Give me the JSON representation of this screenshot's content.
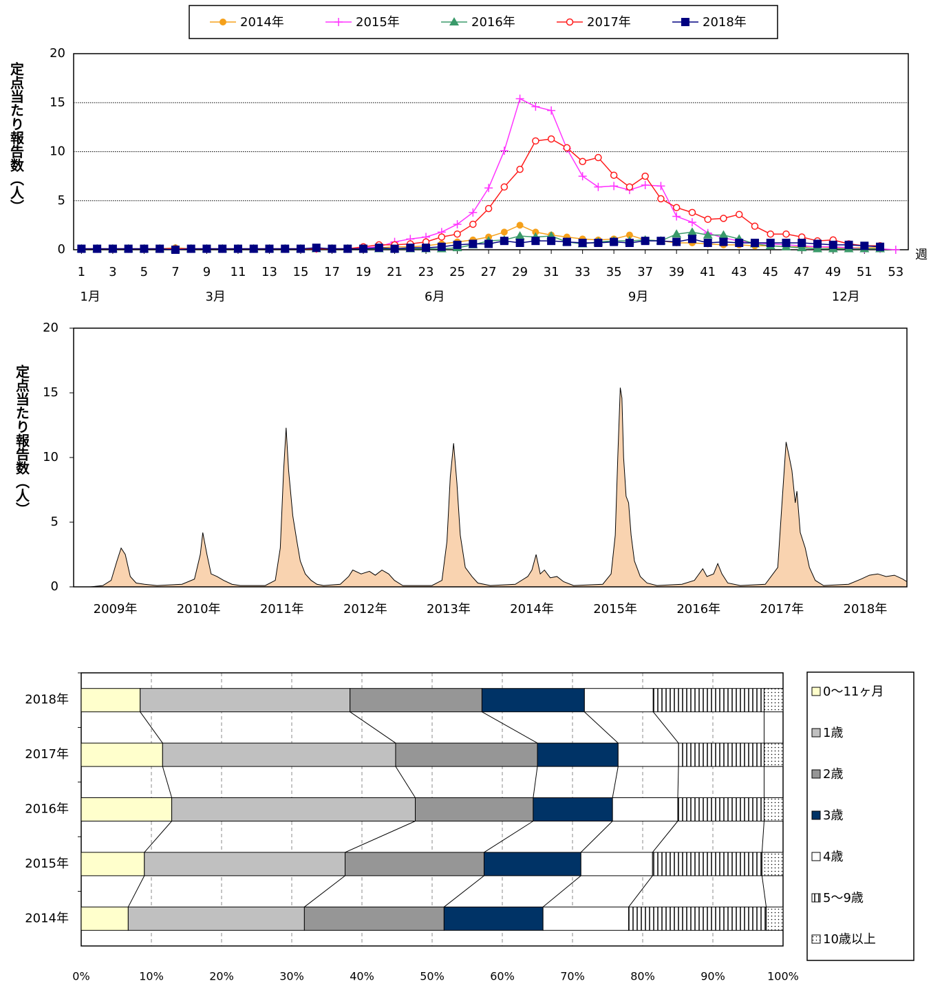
{
  "chart_data": [
    {
      "type": "line",
      "y_label": "定点当たり報告数（人）",
      "x_unit": "週",
      "legend": "top",
      "grid": true,
      "x": [
        1,
        2,
        3,
        4,
        5,
        6,
        7,
        8,
        9,
        10,
        11,
        12,
        13,
        14,
        15,
        16,
        17,
        18,
        19,
        20,
        21,
        22,
        23,
        24,
        25,
        26,
        27,
        28,
        29,
        30,
        31,
        32,
        33,
        34,
        35,
        36,
        37,
        38,
        39,
        40,
        41,
        42,
        43,
        44,
        45,
        46,
        47,
        48,
        49,
        50,
        51,
        52,
        53
      ],
      "xlim": [
        0.5,
        53.8
      ],
      "xticks": [
        1,
        3,
        5,
        7,
        9,
        11,
        13,
        15,
        17,
        19,
        21,
        23,
        25,
        27,
        29,
        31,
        33,
        35,
        37,
        39,
        41,
        43,
        45,
        47,
        49,
        51,
        53
      ],
      "month_labels": [
        {
          "value": 1,
          "label": "1月"
        },
        {
          "value": 9,
          "label": "3月"
        },
        {
          "value": 23,
          "label": "6月"
        },
        {
          "value": 36,
          "label": "9月"
        },
        {
          "value": 49,
          "label": "12月"
        }
      ],
      "ylim": [
        0,
        20
      ],
      "yticks": [
        0,
        5,
        10,
        15,
        20
      ],
      "series": [
        {
          "name": "2014年",
          "color": "#f5a01a",
          "marker": "circle",
          "values": [
            0.1,
            0.1,
            0.1,
            0.1,
            0.1,
            0.1,
            0.2,
            0.1,
            0.1,
            0.1,
            0.1,
            0.1,
            0.1,
            0.1,
            0.1,
            0.1,
            0.1,
            0.1,
            0.2,
            0.2,
            0.3,
            0.3,
            0.4,
            0.6,
            0.8,
            1.0,
            1.3,
            1.8,
            2.5,
            1.8,
            1.5,
            1.3,
            1.1,
            1.0,
            1.1,
            1.5,
            1.0,
            0.9,
            0.7,
            0.7,
            0.6,
            0.5,
            0.5,
            0.4,
            0.4,
            0.3,
            0.3,
            0.3,
            0.2,
            0.2,
            0.2,
            0.2,
            null
          ]
        },
        {
          "name": "2015年",
          "color": "#ff33ff",
          "marker": "plus",
          "values": [
            0.1,
            0.1,
            0.1,
            0.1,
            0.1,
            0.1,
            0.1,
            0.1,
            0.1,
            0.1,
            0.1,
            0.1,
            0.1,
            0.1,
            0.1,
            0.1,
            0.1,
            0.1,
            0.2,
            0.3,
            0.8,
            1.1,
            1.3,
            1.8,
            2.6,
            3.8,
            6.3,
            10.1,
            15.4,
            14.6,
            14.2,
            10.3,
            7.5,
            6.4,
            6.5,
            6.1,
            6.6,
            6.5,
            3.4,
            2.8,
            1.7,
            1.2,
            0.9,
            0.7,
            0.6,
            0.5,
            0.4,
            0.3,
            0.3,
            0.2,
            0.1,
            0.1,
            0.0
          ]
        },
        {
          "name": "2016年",
          "color": "#3a9a6a",
          "marker": "triangle",
          "values": [
            0.1,
            0.1,
            0.1,
            0.1,
            0.1,
            0.1,
            0.1,
            0.1,
            0.1,
            0.1,
            0.1,
            0.1,
            0.1,
            0.1,
            0.1,
            0.1,
            0.1,
            0.1,
            0.1,
            0.1,
            0.1,
            0.1,
            0.1,
            0.1,
            0.2,
            0.5,
            0.9,
            1.0,
            1.4,
            1.3,
            1.4,
            0.8,
            0.6,
            0.8,
            0.9,
            0.9,
            1.0,
            0.9,
            1.6,
            1.8,
            1.5,
            1.5,
            1.1,
            0.6,
            0.4,
            0.3,
            0.2,
            0.1,
            0.1,
            0.1,
            0.1,
            0.1,
            null
          ]
        },
        {
          "name": "2017年",
          "color": "#ff1a1a",
          "marker": "open-circle",
          "values": [
            0.1,
            0.1,
            0.1,
            0.1,
            0.1,
            0.1,
            0.1,
            0.1,
            0.1,
            0.1,
            0.1,
            0.1,
            0.1,
            0.1,
            0.1,
            0.1,
            0.1,
            0.1,
            0.3,
            0.5,
            0.5,
            0.6,
            0.8,
            1.3,
            1.6,
            2.6,
            4.2,
            6.4,
            8.2,
            11.1,
            11.3,
            10.4,
            9.0,
            9.4,
            7.6,
            6.4,
            7.5,
            5.2,
            4.3,
            3.8,
            3.1,
            3.2,
            3.6,
            2.4,
            1.6,
            1.6,
            1.3,
            0.9,
            1.0,
            0.6,
            0.4,
            0.4,
            null
          ]
        },
        {
          "name": "2018年",
          "color": "#000080",
          "marker": "square",
          "values": [
            0.1,
            0.1,
            0.1,
            0.1,
            0.1,
            0.1,
            0.0,
            0.1,
            0.1,
            0.1,
            0.1,
            0.1,
            0.1,
            0.1,
            0.1,
            0.2,
            0.1,
            0.1,
            0.1,
            0.2,
            0.1,
            0.2,
            0.2,
            0.3,
            0.5,
            0.6,
            0.6,
            0.9,
            0.7,
            0.9,
            0.9,
            0.8,
            0.7,
            0.7,
            0.8,
            0.7,
            0.9,
            0.9,
            0.8,
            1.1,
            0.7,
            0.8,
            0.7,
            0.7,
            0.7,
            0.7,
            0.7,
            0.6,
            0.5,
            0.5,
            0.4,
            0.3,
            null
          ]
        }
      ]
    },
    {
      "type": "area",
      "y_label": "定点当たり報告数（人）",
      "color": "#f9d3b0",
      "x": [
        2009.0,
        2009.2,
        2009.35,
        2009.45,
        2009.52,
        2009.57,
        2009.62,
        2009.68,
        2009.75,
        2009.85,
        2010.0,
        2010.3,
        2010.45,
        2010.52,
        2010.55,
        2010.6,
        2010.65,
        2010.72,
        2010.8,
        2010.9,
        2011.0,
        2011.3,
        2011.42,
        2011.48,
        2011.52,
        2011.55,
        2011.58,
        2011.63,
        2011.68,
        2011.72,
        2011.78,
        2011.85,
        2011.92,
        2012.0,
        2012.2,
        2012.3,
        2012.35,
        2012.45,
        2012.55,
        2012.62,
        2012.7,
        2012.78,
        2012.85,
        2012.95,
        2013.3,
        2013.42,
        2013.48,
        2013.52,
        2013.56,
        2013.6,
        2013.64,
        2013.7,
        2013.78,
        2013.85,
        2014.0,
        2014.3,
        2014.45,
        2014.5,
        2014.55,
        2014.6,
        2014.65,
        2014.72,
        2014.8,
        2014.88,
        2015.0,
        2015.35,
        2015.45,
        2015.5,
        2015.53,
        2015.56,
        2015.58,
        2015.6,
        2015.63,
        2015.66,
        2015.69,
        2015.73,
        2015.8,
        2015.88,
        2016.0,
        2016.3,
        2016.45,
        2016.55,
        2016.6,
        2016.68,
        2016.73,
        2016.78,
        2016.85,
        2017.0,
        2017.3,
        2017.45,
        2017.5,
        2017.55,
        2017.58,
        2017.62,
        2017.66,
        2017.68,
        2017.72,
        2017.78,
        2017.83,
        2017.9,
        2018.0,
        2018.3,
        2018.45,
        2018.55,
        2018.65,
        2018.75,
        2018.85,
        2018.95,
        2019.0
      ],
      "values": [
        0,
        0,
        0.1,
        0.5,
        2.0,
        3.0,
        2.5,
        0.8,
        0.3,
        0.2,
        0.1,
        0.2,
        0.6,
        2.5,
        4.2,
        2.5,
        1.0,
        0.8,
        0.5,
        0.2,
        0.1,
        0.1,
        0.5,
        3,
        9,
        12.3,
        9,
        5.5,
        3.5,
        2.0,
        1.0,
        0.5,
        0.2,
        0.1,
        0.2,
        0.8,
        1.3,
        1.0,
        1.2,
        0.9,
        1.3,
        1.0,
        0.5,
        0.1,
        0.1,
        0.5,
        3.5,
        8.5,
        11.1,
        8,
        4,
        1.5,
        0.8,
        0.3,
        0.1,
        0.2,
        0.8,
        1.3,
        2.5,
        1.0,
        1.3,
        0.7,
        0.8,
        0.4,
        0.1,
        0.2,
        1.0,
        4,
        10,
        15.4,
        14.6,
        10,
        7,
        6.5,
        4,
        2.0,
        0.8,
        0.3,
        0.1,
        0.2,
        0.5,
        1.4,
        0.8,
        1.0,
        1.8,
        1.0,
        0.3,
        0.1,
        0.2,
        1.5,
        6.4,
        11.2,
        10.3,
        9.0,
        6.5,
        7.4,
        4.2,
        3.0,
        1.5,
        0.5,
        0.1,
        0.2,
        0.6,
        0.9,
        1.0,
        0.8,
        0.9,
        0.6,
        0.4
      ],
      "xlim": [
        2009,
        2019
      ],
      "xticks": [
        {
          "value": 2009.5,
          "label": "2009年"
        },
        {
          "value": 2010.5,
          "label": "2010年"
        },
        {
          "value": 2011.5,
          "label": "2011年"
        },
        {
          "value": 2012.5,
          "label": "2012年"
        },
        {
          "value": 2013.5,
          "label": "2013年"
        },
        {
          "value": 2014.5,
          "label": "2014年"
        },
        {
          "value": 2015.5,
          "label": "2015年"
        },
        {
          "value": 2016.5,
          "label": "2016年"
        },
        {
          "value": 2017.5,
          "label": "2017年"
        },
        {
          "value": 2018.5,
          "label": "2018年"
        }
      ],
      "ylim": [
        0,
        20
      ],
      "yticks": [
        0,
        5,
        10,
        15,
        20
      ]
    },
    {
      "type": "stacked-barh",
      "grid": true,
      "legend": "right",
      "categories": [
        "2018年",
        "2017年",
        "2016年",
        "2015年",
        "2014年"
      ],
      "xlim": [
        0,
        100
      ],
      "xticks": [
        {
          "value": 0,
          "label": "0%"
        },
        {
          "value": 10,
          "label": "10%"
        },
        {
          "value": 20,
          "label": "20%"
        },
        {
          "value": 30,
          "label": "30%"
        },
        {
          "value": 40,
          "label": "40%"
        },
        {
          "value": 50,
          "label": "50%"
        },
        {
          "value": 60,
          "label": "60%"
        },
        {
          "value": 70,
          "label": "70%"
        },
        {
          "value": 80,
          "label": "80%"
        },
        {
          "value": 90,
          "label": "90%"
        },
        {
          "value": 100,
          "label": "100%"
        }
      ],
      "series": [
        {
          "name": "0～11ヶ月",
          "color": "#ffffcc",
          "values": [
            8.4,
            11.6,
            12.9,
            9.0,
            6.7
          ]
        },
        {
          "name": "1歳",
          "color": "#c0c0c0",
          "values": [
            29.9,
            33.2,
            34.7,
            28.6,
            25.1
          ]
        },
        {
          "name": "2歳",
          "color": "#969696",
          "values": [
            18.8,
            20.2,
            16.8,
            19.8,
            19.9
          ]
        },
        {
          "name": "3歳",
          "color": "#003366",
          "values": [
            14.6,
            11.5,
            11.3,
            13.8,
            14.1
          ]
        },
        {
          "name": "4歳",
          "color": "#ffffff",
          "values": [
            9.8,
            8.6,
            9.3,
            10.2,
            12.2
          ]
        },
        {
          "name": "5～9歳",
          "color": "#ffffff",
          "pattern": "vertical-lines",
          "values": [
            15.8,
            12.2,
            12.3,
            15.6,
            19.6
          ]
        },
        {
          "name": "10歳以上",
          "color": "#ffffff",
          "pattern": "dots",
          "values": [
            2.7,
            2.7,
            2.7,
            3.0,
            2.4
          ]
        }
      ]
    }
  ]
}
